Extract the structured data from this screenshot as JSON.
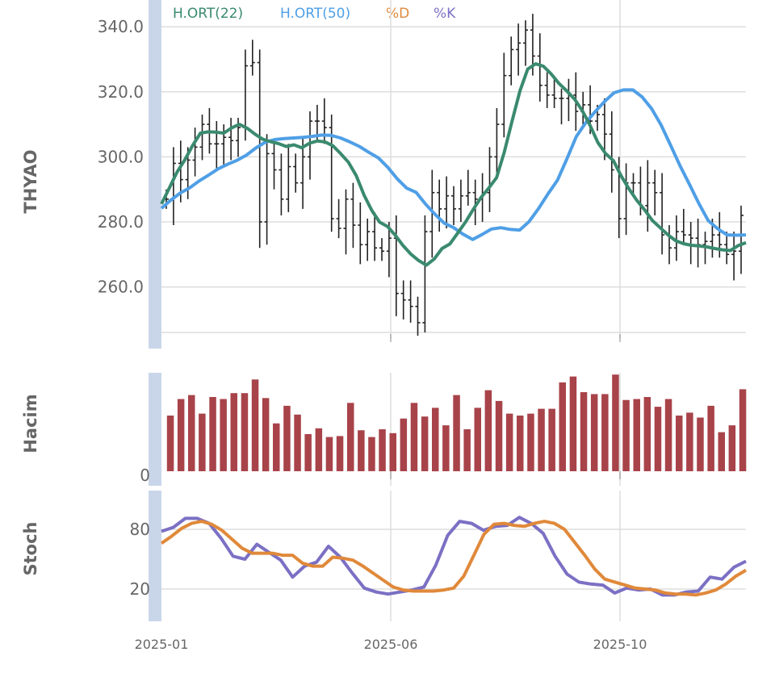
{
  "colors": {
    "ma22": "#3a8a6e",
    "ma50": "#4f9fe6",
    "pctD": "#e0893a",
    "pctK": "#7b70c4",
    "volume": "#a8434a",
    "ohlc": "#222222",
    "axis_band": "#c9d6ea",
    "grid": "#dddddd"
  },
  "legend": [
    {
      "label": "H.ORT(22)",
      "color": "#3a8a6e"
    },
    {
      "label": "H.ORT(50)",
      "color": "#4f9fe6"
    },
    {
      "label": "%D",
      "color": "#e0893a"
    },
    {
      "label": "%K",
      "color": "#7b70c4"
    }
  ],
  "chart_data": {
    "type": "line",
    "x_tick_labels": [
      "2025-01",
      "2025-06",
      "2025-10"
    ],
    "panels": [
      {
        "name": "price",
        "ylabel": "THYAO",
        "yticks": [
          "260.0",
          "280.0",
          "300.0",
          "320.0",
          "340.0"
        ],
        "ylim": [
          246,
          347
        ],
        "ohlc_close": [
          287,
          298,
          293,
          299,
          303,
          310,
          304,
          304,
          306,
          305,
          309,
          328,
          329,
          280,
          301,
          296,
          287,
          297,
          292,
          300,
          311,
          311,
          309,
          281,
          278,
          287,
          279,
          273,
          277,
          272,
          271,
          275,
          258,
          256,
          254,
          249,
          277,
          289,
          284,
          288,
          284,
          288,
          289,
          287,
          289,
          300,
          310,
          325,
          333,
          335,
          339,
          331,
          322,
          319,
          318,
          318,
          319,
          314,
          316,
          311,
          313,
          307,
          296,
          281,
          292,
          292,
          285,
          292,
          289,
          276,
          272,
          277,
          276,
          275,
          273,
          274,
          276,
          273,
          270,
          271,
          282
        ],
        "series": [
          {
            "name": "H.ORT(22)",
            "values": [
              285.5,
              290.4,
              295.3,
              299.1,
              303.5,
              307.3,
              307.7,
              307.6,
              307.3,
              308.9,
              310.0,
              308.8,
              307.0,
              305.4,
              304.7,
              304.1,
              303.2,
              303.7,
              302.8,
              304.2,
              304.9,
              304.6,
              303.4,
              301.0,
              298.3,
              294.2,
              288.2,
              283.5,
              279.9,
              278.6,
              275.9,
              272.7,
              270.1,
              268.1,
              266.7,
              268.6,
              271.8,
              273.2,
              276.5,
              279.9,
              283.8,
              287.5,
              290.4,
              293.6,
              301.5,
              311.1,
              320.3,
              327.0,
              328.6,
              327.9,
              325.5,
              322.6,
              320.3,
              317.8,
              314.2,
              309.7,
              304.4,
              301.0,
              298.8,
              294.1,
              290.1,
              286.6,
              283.7,
              280.4,
              278.2,
              276.0,
              274.2,
              273.3,
              272.8,
              272.6,
              272.3,
              271.8,
              271.4,
              271.2,
              272.7,
              273.6
            ]
          },
          {
            "name": "H.ORT(50)",
            "values": [
              284.2,
              286.7,
              288.9,
              290.5,
              292.6,
              294.4,
              296.3,
              297.7,
              298.9,
              300.5,
              302.7,
              304.5,
              305.3,
              305.6,
              305.8,
              306.0,
              306.3,
              306.7,
              306.6,
              305.8,
              304.6,
              303.2,
              301.4,
              299.7,
              296.8,
              293.3,
              290.4,
              289.1,
              285.5,
              282.4,
              279.6,
              278.2,
              276.2,
              274.6,
              276.1,
              277.8,
              278.2,
              277.7,
              277.5,
              280.1,
              284.1,
              288.6,
              292.8,
              299.3,
              306.2,
              310.5,
              313.9,
              317.0,
              319.7,
              320.6,
              320.6,
              318.4,
              314.8,
              309.8,
              303.6,
              297.3,
              291.6,
              285.7,
              280.4,
              277.9,
              276.0,
              275.9,
              276.0
            ]
          }
        ]
      },
      {
        "name": "volume",
        "ylabel": "Hacim",
        "yticks": [
          "0"
        ],
        "ylim": [
          0,
          1
        ],
        "values": [
          0.57,
          0.74,
          0.78,
          0.59,
          0.76,
          0.74,
          0.8,
          0.8,
          0.94,
          0.75,
          0.49,
          0.67,
          0.58,
          0.38,
          0.44,
          0.35,
          0.36,
          0.7,
          0.42,
          0.35,
          0.43,
          0.39,
          0.54,
          0.7,
          0.56,
          0.65,
          0.47,
          0.78,
          0.43,
          0.65,
          0.83,
          0.72,
          0.59,
          0.57,
          0.59,
          0.64,
          0.64,
          0.91,
          0.97,
          0.81,
          0.79,
          0.79,
          0.99,
          0.73,
          0.74,
          0.76,
          0.66,
          0.74,
          0.57,
          0.6,
          0.55,
          0.67,
          0.4,
          0.47,
          0.84
        ]
      },
      {
        "name": "stoch",
        "ylabel": "Stoch",
        "yticks": [
          "20",
          "80"
        ],
        "ylim": [
          0,
          105
        ],
        "series": [
          {
            "name": "%D",
            "values": [
              66,
              73,
              81,
              86,
              88,
              85,
              79,
              70,
              61,
              56,
              56,
              56,
              54,
              54,
              46,
              43,
              43,
              52,
              51,
              49,
              43,
              36,
              29,
              22,
              19,
              18,
              18,
              18,
              19,
              21,
              33,
              54,
              75,
              85,
              86,
              84,
              83,
              86,
              88,
              86,
              80,
              67,
              54,
              40,
              30,
              27,
              24,
              21,
              20,
              19,
              16,
              15,
              15,
              14,
              16,
              19,
              25,
              33,
              39
            ]
          },
          {
            "name": "%K",
            "values": [
              78,
              82,
              91,
              91,
              86,
              71,
              53,
              50,
              65,
              57,
              49,
              32,
              43,
              47,
              63,
              52,
              36,
              21,
              17,
              15,
              17,
              19,
              22,
              44,
              74,
              88,
              86,
              79,
              83,
              84,
              92,
              86,
              76,
              53,
              35,
              27,
              25,
              24,
              16,
              21,
              19,
              20,
              14,
              14,
              17,
              18,
              32,
              30,
              42,
              48
            ]
          }
        ]
      }
    ],
    "xlabel": "",
    "grid": true,
    "legend_placement": "top-left"
  }
}
